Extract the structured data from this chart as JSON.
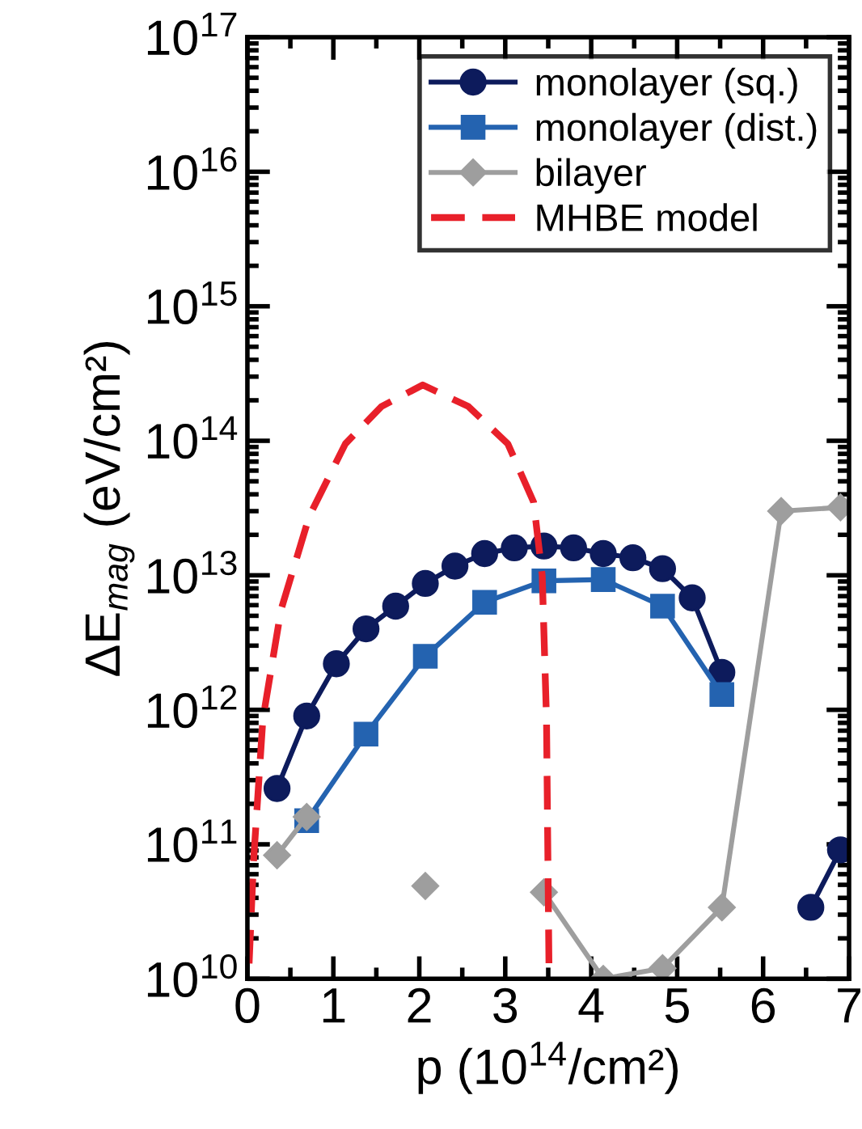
{
  "chart_data": {
    "type": "line",
    "xlabel": "p (10$^{14}$/cm²)",
    "ylabel": "ΔE$_{mag}$ (eV/cm²)",
    "log": "y",
    "xlim": [
      0,
      7
    ],
    "ylim": [
      10000000000.0,
      1e+17
    ],
    "xticks": [
      0,
      1,
      2,
      3,
      4,
      5,
      6,
      7
    ],
    "yticks": [
      {
        "value": 10000000000.0,
        "label": "10$^{10}$"
      },
      {
        "value": 100000000000.0,
        "label": "10$^{11}$"
      },
      {
        "value": 1000000000000.0,
        "label": "10$^{12}$"
      },
      {
        "value": 10000000000000.0,
        "label": "10$^{13}$"
      },
      {
        "value": 100000000000000.0,
        "label": "10$^{14}$"
      },
      {
        "value": 1000000000000000.0,
        "label": "10$^{15}$"
      },
      {
        "value": 1e+16,
        "label": "10$^{16}$"
      },
      {
        "value": 1e+17,
        "label": "10$^{17}$"
      }
    ],
    "legend": "top right",
    "grid": false,
    "series": [
      {
        "name": "monolayer (sq.)",
        "color": "#0d1b5c",
        "marker": "circle",
        "x": [
          0.345,
          0.69,
          1.035,
          1.38,
          1.725,
          2.07,
          2.415,
          2.76,
          3.105,
          3.45,
          3.795,
          4.14,
          4.485,
          4.83,
          5.175,
          5.52,
          5.865,
          6.21,
          6.555,
          6.9
        ],
        "values": [
          260000000000.0,
          900000000000.0,
          2200000000000.0,
          4000000000000.0,
          5900000000000.0,
          8700000000000.0,
          11700000000000.0,
          14500000000000.0,
          16000000000000.0,
          16500000000000.0,
          16000000000000.0,
          14500000000000.0,
          13500000000000.0,
          11200000000000.0,
          6800000000000.0,
          1900000000000.0,
          null,
          null,
          34000000000.0,
          91000000000.0
        ]
      },
      {
        "name": "monolayer (dist.)",
        "color": "#2463b0",
        "marker": "square",
        "x": [
          0.69,
          1.38,
          2.07,
          2.76,
          3.45,
          4.14,
          4.83,
          5.52
        ],
        "values": [
          150000000000.0,
          660000000000.0,
          2500000000000.0,
          6300000000000.0,
          9100000000000.0,
          9300000000000.0,
          5900000000000.0,
          1300000000000.0
        ]
      },
      {
        "name": "bilayer",
        "color": "#9e9e9e",
        "marker": "diamond",
        "x": [
          0.345,
          0.69,
          1.38,
          2.07,
          2.76,
          3.45,
          4.14,
          4.83,
          5.52,
          6.21,
          6.9
        ],
        "values": [
          83000000000.0,
          160000000000.0,
          null,
          49000000000.0,
          null,
          44000000000.0,
          10000000000.0,
          12000000000.0,
          34000000000.0,
          30000000000000.0,
          32000000000000.0
        ]
      },
      {
        "name": "MHBE model",
        "color": "#e8202a",
        "marker": "none",
        "line_style": "dashed",
        "x": [
          0.02,
          0.07,
          0.18,
          0.39,
          0.72,
          1.14,
          1.56,
          2.04,
          2.57,
          3.03,
          3.33,
          3.43,
          3.48,
          3.51
        ],
        "values": [
          13000000000.0,
          72000000000.0,
          850000000000.0,
          5500000000000.0,
          27500000000000.0,
          95000000000000.0,
          180000000000000.0,
          260000000000000.0,
          180000000000000.0,
          95000000000000.0,
          35000000000000.0,
          10000000000000.0,
          850000000000.0,
          10000000000.0
        ]
      }
    ]
  }
}
